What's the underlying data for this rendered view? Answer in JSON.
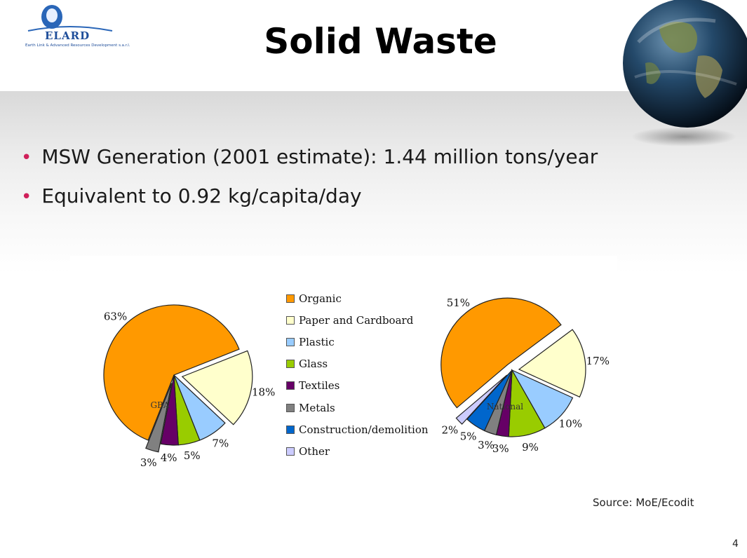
{
  "slide": {
    "title": "Solid Waste",
    "bullets": [
      "MSW Generation (2001 estimate): 1.44 million tons/year",
      "Equivalent to 0.92 kg/capita/day"
    ],
    "source": "Source: MoE/Ecodit",
    "page_number": "4"
  },
  "logo": {
    "name": "ELARD",
    "tagline": "Earth Link & Advanced Resources Development s.a.r.l."
  },
  "chart_data": [
    {
      "type": "pie",
      "title": "",
      "center_label": "GBA",
      "categories": [
        "Organic",
        "Paper and Cardboard",
        "Plastic",
        "Glass",
        "Textiles",
        "Metals"
      ],
      "values": [
        63,
        18,
        7,
        5,
        4,
        3
      ],
      "labels": [
        "63%",
        "18%",
        "7%",
        "5%",
        "4%",
        "3%"
      ],
      "colors": [
        "#ff9900",
        "#ffffcc",
        "#99ccff",
        "#99cc00",
        "#660066",
        "#808080"
      ],
      "exploded": [
        "Paper and Cardboard",
        "Metals"
      ]
    },
    {
      "type": "pie",
      "title": "",
      "center_label": "National",
      "categories": [
        "Organic",
        "Paper and Cardboard",
        "Plastic",
        "Glass",
        "Textiles",
        "Metals",
        "Construction/demolition",
        "Other"
      ],
      "values": [
        51,
        17,
        10,
        9,
        3,
        3,
        5,
        2
      ],
      "labels": [
        "51%",
        "17%",
        "10%",
        "9%",
        "3%",
        "3%",
        "5%",
        "2%"
      ],
      "colors": [
        "#ff9900",
        "#ffffcc",
        "#99ccff",
        "#99cc00",
        "#660066",
        "#808080",
        "#0066cc",
        "#ccccff"
      ],
      "exploded": [
        "Organic",
        "Paper and Cardboard",
        "Other"
      ]
    }
  ],
  "legend": {
    "placement": "between-charts",
    "items": [
      {
        "label": "Organic",
        "color": "#ff9900"
      },
      {
        "label": "Paper and Cardboard",
        "color": "#ffffcc"
      },
      {
        "label": "Plastic",
        "color": "#99ccff"
      },
      {
        "label": "Glass",
        "color": "#99cc00"
      },
      {
        "label": "Textiles",
        "color": "#660066"
      },
      {
        "label": "Metals",
        "color": "#808080"
      },
      {
        "label": "Construction/demolition",
        "color": "#0066cc"
      },
      {
        "label": "Other",
        "color": "#ccccff"
      }
    ]
  }
}
